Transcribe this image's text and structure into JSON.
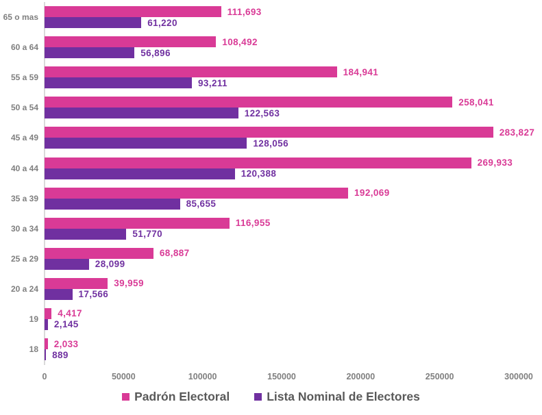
{
  "chart_data": {
    "type": "bar",
    "orientation": "horizontal",
    "title": "",
    "xlabel": "",
    "ylabel": "",
    "grid": false,
    "legend_position": "bottom",
    "xlim": [
      0,
      300000
    ],
    "x_ticks": [
      "0",
      "50000",
      "100000",
      "150000",
      "200000",
      "250000",
      "300000"
    ],
    "categories": [
      "65 o mas",
      "60 a 64",
      "55 a 59",
      "50 a 54",
      "45 a 49",
      "40 a 44",
      "35 a 39",
      "30 a 34",
      "25 a 29",
      "20 a 24",
      "19",
      "18"
    ],
    "series": [
      {
        "name": "Padrón Electoral",
        "color": "#d93a96",
        "values": [
          111693,
          108492,
          184941,
          258041,
          283827,
          269933,
          192069,
          116955,
          68887,
          39959,
          4417,
          2033
        ],
        "labels": [
          "111,693",
          "108,492",
          "184,941",
          "258,041",
          "283,827",
          "269,933",
          "192,069",
          "116,955",
          "68,887",
          "39,959",
          "4,417",
          "2,033"
        ]
      },
      {
        "name": "Lista Nominal de Electores",
        "color": "#7030a0",
        "values": [
          61220,
          56896,
          93211,
          122563,
          128056,
          120388,
          85655,
          51770,
          28099,
          17566,
          2145,
          889
        ],
        "labels": [
          "61,220",
          "56,896",
          "93,211",
          "122,563",
          "128,056",
          "120,388",
          "85,655",
          "51,770",
          "28,099",
          "17,566",
          "2,145",
          "889"
        ]
      }
    ]
  },
  "colors": {
    "padron_pink": "#d93a96",
    "lista_purple": "#7030a0",
    "axis_line_gray": "#d9d9d9",
    "tick_text_gray": "#7f7f7f",
    "legend_text_gray": "#595959"
  }
}
